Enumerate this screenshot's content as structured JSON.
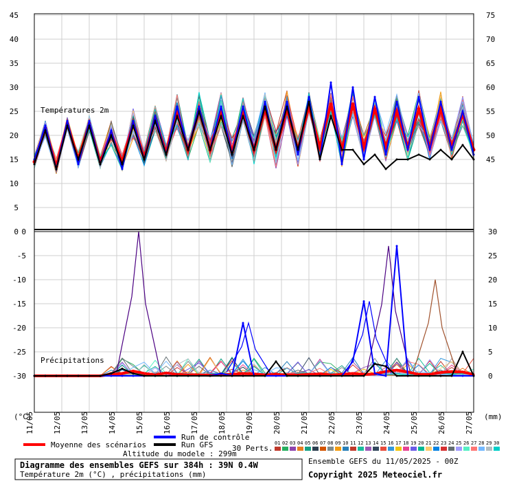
{
  "chart_data": [
    {
      "type": "line",
      "panel": "temperature",
      "label": "Températures 2m",
      "left_axis": [
        0,
        5,
        10,
        15,
        20,
        25,
        30,
        35,
        40,
        45
      ],
      "right_axis": [
        45,
        50,
        55,
        60,
        65,
        70,
        75
      ],
      "ylim": [
        0,
        45
      ],
      "ensemble_min": [
        13,
        19,
        12,
        21,
        13,
        20,
        13,
        18,
        12,
        19,
        13,
        21,
        14,
        21,
        14,
        22,
        14,
        22,
        13,
        23,
        14,
        24,
        13,
        24,
        12,
        25,
        12,
        25,
        12,
        24,
        13,
        24,
        14,
        23,
        14,
        22,
        14,
        23,
        14,
        22,
        14
      ],
      "ensemble_max": [
        16,
        23,
        16,
        24,
        17,
        24,
        16,
        24,
        16,
        26,
        17,
        27,
        18,
        29,
        19,
        30,
        20,
        31,
        20,
        30,
        21,
        32,
        22,
        33,
        20,
        33,
        19,
        32,
        20,
        31,
        20,
        30,
        21,
        31,
        20,
        31,
        20,
        32,
        20,
        31,
        18
      ],
      "series": [
        {
          "name": "Moyenne des scénarios",
          "color": "#ff0000",
          "values": [
            14.5,
            21.5,
            13.5,
            22.5,
            15,
            22.5,
            14.5,
            20.5,
            14.5,
            22.5,
            15.5,
            23.5,
            16.5,
            25,
            17,
            25.5,
            17,
            25,
            16.5,
            25,
            17,
            25.5,
            17,
            25.5,
            17,
            26,
            17.5,
            26.5,
            17,
            26.5,
            17.5,
            25.5,
            17.5,
            25,
            17.5,
            25.5,
            17.5,
            25.5,
            17.5,
            24.5,
            17
          ]
        },
        {
          "name": "Run de contrôle",
          "color": "#0000ff",
          "values": [
            15,
            22,
            13,
            23,
            14,
            23,
            14,
            21,
            13,
            23,
            15,
            24,
            16,
            26,
            17,
            26,
            17,
            26,
            16,
            26,
            17,
            27,
            17,
            27,
            16,
            28,
            15,
            31,
            14,
            30,
            15,
            28,
            16,
            27,
            17,
            28,
            17,
            27,
            17,
            25,
            16
          ]
        },
        {
          "name": "Run GFS",
          "color": "#000000",
          "values": [
            14,
            21,
            13,
            22,
            15,
            22,
            14,
            20,
            14,
            22,
            15,
            23,
            16,
            24,
            17,
            25,
            17,
            24,
            16,
            24,
            17,
            26,
            17,
            26,
            17,
            27,
            15,
            24,
            17,
            17,
            14,
            16,
            13,
            15,
            15,
            16,
            15,
            17,
            15,
            18,
            15
          ]
        }
      ]
    },
    {
      "type": "line",
      "panel": "precipitation",
      "label": "Précipitations",
      "left_axis": [
        0,
        -5,
        -10,
        -15,
        -20,
        -25,
        -30
      ],
      "right_axis": [
        30,
        25,
        20,
        15,
        10,
        5,
        0
      ],
      "ylim": [
        0,
        30
      ],
      "unit": "(mm)",
      "highlight_peaks": [
        {
          "member": "06",
          "x": 14.8,
          "y": 30,
          "color": "#4b0082"
        },
        {
          "member": "16",
          "x": 23.9,
          "y": 27,
          "color": "#4b0082"
        },
        {
          "member": "25",
          "x": 25.6,
          "y": 20,
          "color": "#a0522d"
        },
        {
          "member": "control",
          "x": 23.2,
          "y": 15.5,
          "color": "#0000ff"
        },
        {
          "member": "05",
          "x": 18.8,
          "y": 11,
          "color": "#0000ff"
        }
      ],
      "series": [
        {
          "name": "Moyenne des scénarios",
          "color": "#ff0000",
          "values": [
            0,
            0,
            0,
            0,
            0,
            0,
            0,
            0.3,
            0.5,
            1.0,
            0.5,
            0.2,
            0.6,
            0.3,
            0.2,
            0.2,
            0.1,
            0.2,
            0.3,
            0.5,
            0.4,
            0.2,
            0.3,
            0.2,
            0.2,
            0.3,
            0.4,
            0.2,
            0.3,
            0.5,
            0.3,
            0.4,
            0.9,
            1.2,
            0.8,
            0.3,
            0.3,
            0.7,
            0.9,
            0.8,
            0.3
          ]
        },
        {
          "name": "Run de contrôle",
          "color": "#0000ff",
          "values": [
            0,
            0,
            0,
            0,
            0,
            0,
            0,
            0,
            0,
            0,
            0,
            0,
            0,
            0,
            0,
            0,
            0,
            0.5,
            0,
            11,
            0,
            0,
            0,
            0,
            0,
            0,
            0,
            0,
            0,
            3,
            15.5,
            0.5,
            0,
            27,
            0,
            0,
            0,
            0,
            0,
            0,
            0
          ]
        },
        {
          "name": "Run GFS",
          "color": "#000000",
          "values": [
            0,
            0,
            0,
            0,
            0,
            0,
            0,
            0.5,
            1.5,
            0.5,
            0,
            0,
            0,
            0,
            0,
            0,
            0,
            0,
            0,
            0,
            0,
            0,
            3,
            0,
            0,
            0,
            0,
            0,
            0,
            0,
            0,
            2.5,
            2.0,
            0,
            0,
            0,
            0,
            0,
            0,
            5,
            0
          ]
        }
      ]
    },
    {
      "type": "axis",
      "x_label_left": "(°C)",
      "x_label_right": "(mm)",
      "categories": [
        "11/05",
        "12/05",
        "13/05",
        "14/05",
        "15/05",
        "16/05",
        "17/05",
        "18/05",
        "19/05",
        "20/05",
        "21/05",
        "22/05",
        "23/05",
        "24/05",
        "25/05",
        "26/05",
        "27/05"
      ]
    }
  ],
  "legend": {
    "mean": "Moyenne des scénarios",
    "control": "Run de contrôle",
    "gfs": "Run GFS",
    "altitude": "Altitude du modele : 299m",
    "perts_label": "30 Perts.",
    "members": [
      "01",
      "02",
      "03",
      "04",
      "05",
      "06",
      "07",
      "08",
      "09",
      "10",
      "11",
      "12",
      "13",
      "14",
      "15",
      "16",
      "17",
      "18",
      "19",
      "20",
      "21",
      "22",
      "23",
      "24",
      "25",
      "26",
      "27",
      "28",
      "29",
      "30"
    ],
    "member_colors": [
      "#c0392b",
      "#27ae60",
      "#8e44ad",
      "#e67e22",
      "#16a085",
      "#2c3e50",
      "#d35400",
      "#7f8c8d",
      "#f39c12",
      "#2980b9",
      "#c0392b",
      "#1abc9c",
      "#9b59b6",
      "#34495e",
      "#e74c3c",
      "#3498db",
      "#f1c40f",
      "#e84393",
      "#6c5ce7",
      "#00b894",
      "#fdcb6e",
      "#0984e3",
      "#d63031",
      "#636e72",
      "#a29bfe",
      "#55efc4",
      "#ff7675",
      "#74b9ff",
      "#b2bec3",
      "#00cec9"
    ]
  },
  "footer": {
    "title": "Diagramme des ensembles GEFS sur 384h : 39N 0.4W",
    "subtitle": "Température 2m (°C) , précipitations (mm)",
    "run": "Ensemble GEFS du 11/05/2025 - 00Z",
    "copyright": "Copyright 2025 Meteociel.fr"
  }
}
